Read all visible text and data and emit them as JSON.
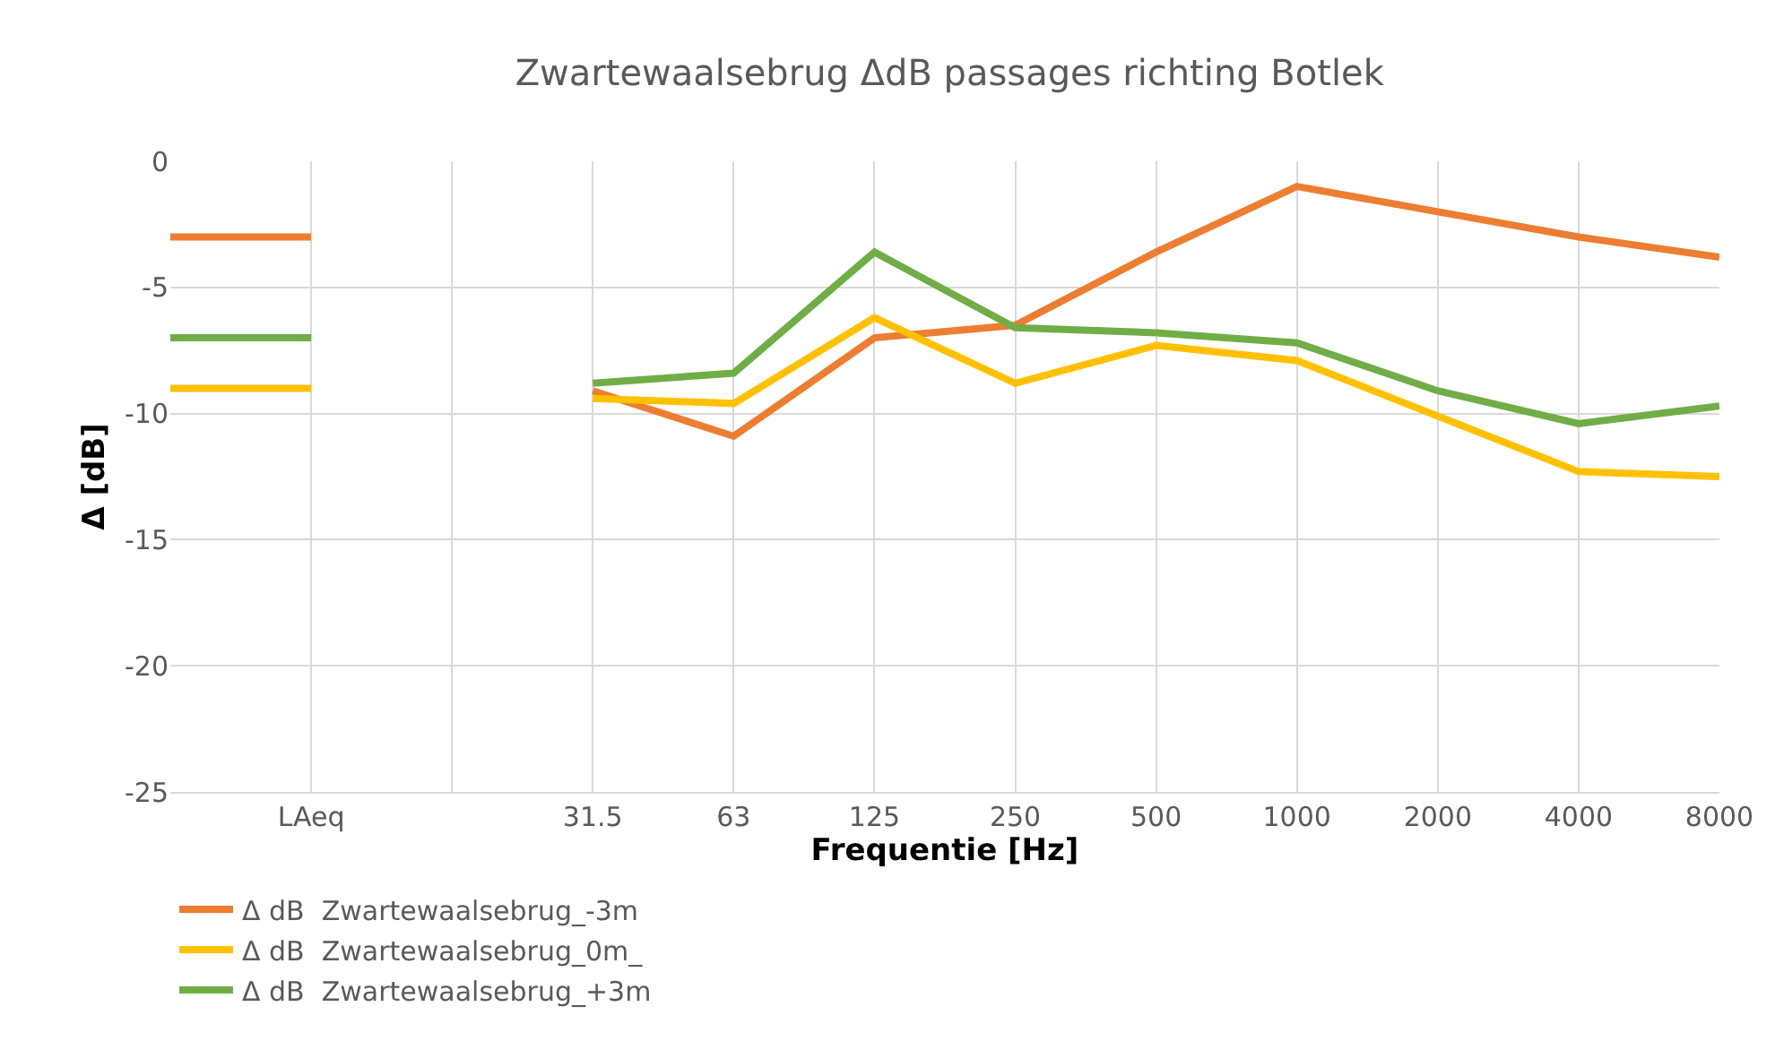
{
  "chart_data": {
    "type": "line",
    "title": "Zwartewaalsebrug ΔdB passages richting Botlek",
    "xlabel": "Frequentie [Hz]",
    "ylabel": "Δ [dB]",
    "categories": [
      null,
      "LAeq",
      null,
      "31.5",
      "63",
      "125",
      "250",
      "500",
      "1000",
      "2000",
      "4000",
      "8000"
    ],
    "series": [
      {
        "name": "Δ dB  Zwartewaalsebrug_-3m",
        "color": "#ed7d31",
        "values": [
          -3.0,
          -3.0,
          null,
          -9.1,
          -10.9,
          -7.0,
          -6.5,
          -3.6,
          -1.0,
          -2.0,
          -3.0,
          -3.8
        ]
      },
      {
        "name": "Δ dB  Zwartewaalsebrug_0m_",
        "color": "#ffc000",
        "values": [
          -9.0,
          -9.0,
          null,
          -9.4,
          -9.6,
          -6.2,
          -8.8,
          -7.3,
          -7.9,
          -10.1,
          -12.3,
          -12.5
        ]
      },
      {
        "name": "Δ dB  Zwartewaalsebrug_+3m",
        "color": "#70ad47",
        "values": [
          -7.0,
          -7.0,
          null,
          -8.8,
          -8.4,
          -3.6,
          -6.6,
          -6.8,
          -7.2,
          -9.1,
          -10.4,
          -9.7
        ]
      }
    ],
    "ylim": [
      -25,
      0
    ],
    "yticks": [
      0,
      -5,
      -10,
      -15,
      -20,
      -25
    ],
    "grid": true,
    "legend": "bottom",
    "marker": "none",
    "line_style": "solid"
  }
}
